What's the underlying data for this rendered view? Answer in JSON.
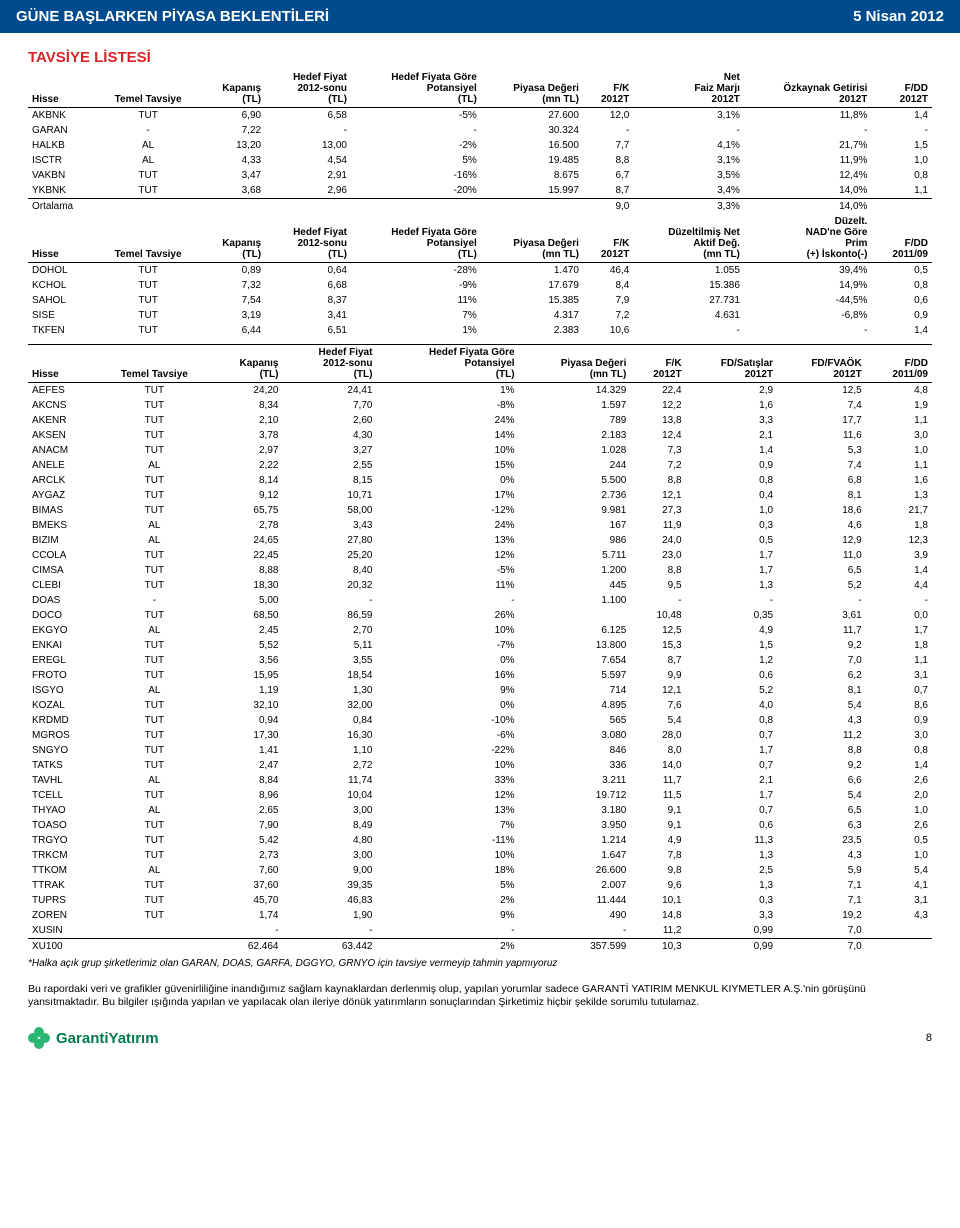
{
  "header": {
    "title": "GÜNE BAŞLARKEN PİYASA BEKLENTİLERİ",
    "date": "5 Nisan 2012"
  },
  "section_title": "TAVSİYE LİSTESİ",
  "t1_headers": [
    "Hisse",
    "Temel Tavsiye",
    "Kapanış (TL)",
    "Hedef Fiyat 2012-sonu (TL)",
    "Hedef Fiyata Göre Potansiyel (TL)",
    "Piyasa Değeri (mn TL)",
    "F/K 2012T",
    "Net Faiz Marjı 2012T",
    "Özkaynak Getirisi 2012T",
    "F/DD 2012T"
  ],
  "t1_rows": [
    [
      "AKBNK",
      "TUT",
      "6,90",
      "6,58",
      "-5%",
      "27.600",
      "12,0",
      "3,1%",
      "11,8%",
      "1,4"
    ],
    [
      "GARAN",
      "-",
      "7,22",
      "-",
      "-",
      "30.324",
      "-",
      "-",
      "-",
      "-"
    ],
    [
      "HALKB",
      "AL",
      "13,20",
      "13,00",
      "-2%",
      "16.500",
      "7,7",
      "4,1%",
      "21,7%",
      "1,5"
    ],
    [
      "ISCTR",
      "AL",
      "4,33",
      "4,54",
      "5%",
      "19.485",
      "8,8",
      "3,1%",
      "11,9%",
      "1,0"
    ],
    [
      "VAKBN",
      "TUT",
      "3,47",
      "2,91",
      "-16%",
      "8.675",
      "6,7",
      "3,5%",
      "12,4%",
      "0,8"
    ],
    [
      "YKBNK",
      "TUT",
      "3,68",
      "2,96",
      "-20%",
      "15.997",
      "8,7",
      "3,4%",
      "14,0%",
      "1,1"
    ]
  ],
  "t1_avg": [
    "Ortalama",
    "",
    "",
    "",
    "",
    "",
    "9,0",
    "3,3%",
    "14,0%",
    ""
  ],
  "t2_headers": [
    "Hisse",
    "Temel Tavsiye",
    "Kapanış (TL)",
    "Hedef Fiyat 2012-sonu (TL)",
    "Hedef Fiyata Göre Potansiyel (TL)",
    "Piyasa Değeri (mn TL)",
    "F/K 2012T",
    "Düzeltilmiş Net Aktif Değ. (mn TL)",
    "Düzelt. NAD'ne Göre Prim (+) İskonto(-)",
    "F/DD 2011/09"
  ],
  "t2_rows": [
    [
      "DOHOL",
      "TUT",
      "0,89",
      "0,64",
      "-28%",
      "1.470",
      "46,4",
      "1.055",
      "39,4%",
      "0,5"
    ],
    [
      "KCHOL",
      "TUT",
      "7,32",
      "6,68",
      "-9%",
      "17.679",
      "8,4",
      "15.386",
      "14,9%",
      "0,8"
    ],
    [
      "SAHOL",
      "TUT",
      "7,54",
      "8,37",
      "11%",
      "15.385",
      "7,9",
      "27.731",
      "-44,5%",
      "0,6"
    ],
    [
      "SISE",
      "TUT",
      "3,19",
      "3,41",
      "7%",
      "4.317",
      "7,2",
      "4.631",
      "-6,8%",
      "0,9"
    ],
    [
      "TKFEN",
      "TUT",
      "6,44",
      "6,51",
      "1%",
      "2.383",
      "10,6",
      "-",
      "-",
      "1,4"
    ]
  ],
  "t3_headers": [
    "Hisse",
    "Temel Tavsiye",
    "Kapanış (TL)",
    "Hedef Fiyat 2012-sonu (TL)",
    "Hedef Fiyata Göre Potansiyel (TL)",
    "Piyasa Değeri (mn TL)",
    "F/K 2012T",
    "FD/Satışlar 2012T",
    "FD/FVAÖK 2012T",
    "F/DD 2011/09"
  ],
  "t3_rows": [
    [
      "AEFES",
      "TUT",
      "24,20",
      "24,41",
      "1%",
      "14.329",
      "22,4",
      "2,9",
      "12,5",
      "4,8"
    ],
    [
      "AKCNS",
      "TUT",
      "8,34",
      "7,70",
      "-8%",
      "1.597",
      "12,2",
      "1,6",
      "7,4",
      "1,9"
    ],
    [
      "AKENR",
      "TUT",
      "2,10",
      "2,60",
      "24%",
      "789",
      "13,8",
      "3,3",
      "17,7",
      "1,1"
    ],
    [
      "AKSEN",
      "TUT",
      "3,78",
      "4,30",
      "14%",
      "2.183",
      "12,4",
      "2,1",
      "11,6",
      "3,0"
    ],
    [
      "ANACM",
      "TUT",
      "2,97",
      "3,27",
      "10%",
      "1.028",
      "7,3",
      "1,4",
      "5,3",
      "1,0"
    ],
    [
      "ANELE",
      "AL",
      "2,22",
      "2,55",
      "15%",
      "244",
      "7,2",
      "0,9",
      "7,4",
      "1,1"
    ],
    [
      "ARCLK",
      "TUT",
      "8,14",
      "8,15",
      "0%",
      "5.500",
      "8,8",
      "0,8",
      "6,8",
      "1,6"
    ],
    [
      "AYGAZ",
      "TUT",
      "9,12",
      "10,71",
      "17%",
      "2.736",
      "12,1",
      "0,4",
      "8,1",
      "1,3"
    ],
    [
      "BIMAS",
      "TUT",
      "65,75",
      "58,00",
      "-12%",
      "9.981",
      "27,3",
      "1,0",
      "18,6",
      "21,7"
    ],
    [
      "BMEKS",
      "AL",
      "2,78",
      "3,43",
      "24%",
      "167",
      "11,9",
      "0,3",
      "4,6",
      "1,8"
    ],
    [
      "BIZIM",
      "AL",
      "24,65",
      "27,80",
      "13%",
      "986",
      "24,0",
      "0,5",
      "12,9",
      "12,3"
    ],
    [
      "CCOLA",
      "TUT",
      "22,45",
      "25,20",
      "12%",
      "5.711",
      "23,0",
      "1,7",
      "11,0",
      "3,9"
    ],
    [
      "CIMSA",
      "TUT",
      "8,88",
      "8,40",
      "-5%",
      "1.200",
      "8,8",
      "1,7",
      "6,5",
      "1,4"
    ],
    [
      "CLEBI",
      "TUT",
      "18,30",
      "20,32",
      "11%",
      "445",
      "9,5",
      "1,3",
      "5,2",
      "4,4"
    ],
    [
      "DOAS",
      "-",
      "5,00",
      "-",
      "-",
      "1.100",
      "-",
      "-",
      "-",
      "-"
    ],
    [
      "DOCO",
      "TUT",
      "68,50",
      "86,59",
      "26%",
      "",
      "10,48",
      "0,35",
      "3,61",
      "0,0"
    ],
    [
      "EKGYO",
      "AL",
      "2,45",
      "2,70",
      "10%",
      "6.125",
      "12,5",
      "4,9",
      "11,7",
      "1,7"
    ],
    [
      "ENKAI",
      "TUT",
      "5,52",
      "5,11",
      "-7%",
      "13.800",
      "15,3",
      "1,5",
      "9,2",
      "1,8"
    ],
    [
      "EREGL",
      "TUT",
      "3,56",
      "3,55",
      "0%",
      "7.654",
      "8,7",
      "1,2",
      "7,0",
      "1,1"
    ],
    [
      "FROTO",
      "TUT",
      "15,95",
      "18,54",
      "16%",
      "5.597",
      "9,9",
      "0,6",
      "6,2",
      "3,1"
    ],
    [
      "ISGYO",
      "AL",
      "1,19",
      "1,30",
      "9%",
      "714",
      "12,1",
      "5,2",
      "8,1",
      "0,7"
    ],
    [
      "KOZAL",
      "TUT",
      "32,10",
      "32,00",
      "0%",
      "4.895",
      "7,6",
      "4,0",
      "5,4",
      "8,6"
    ],
    [
      "KRDMD",
      "TUT",
      "0,94",
      "0,84",
      "-10%",
      "565",
      "5,4",
      "0,8",
      "4,3",
      "0,9"
    ],
    [
      "MGROS",
      "TUT",
      "17,30",
      "16,30",
      "-6%",
      "3.080",
      "28,0",
      "0,7",
      "11,2",
      "3,0"
    ],
    [
      "SNGYO",
      "TUT",
      "1,41",
      "1,10",
      "-22%",
      "846",
      "8,0",
      "1,7",
      "8,8",
      "0,8"
    ],
    [
      "TATKS",
      "TUT",
      "2,47",
      "2,72",
      "10%",
      "336",
      "14,0",
      "0,7",
      "9,2",
      "1,4"
    ],
    [
      "TAVHL",
      "AL",
      "8,84",
      "11,74",
      "33%",
      "3.211",
      "11,7",
      "2,1",
      "6,6",
      "2,6"
    ],
    [
      "TCELL",
      "TUT",
      "8,96",
      "10,04",
      "12%",
      "19.712",
      "11,5",
      "1,7",
      "5,4",
      "2,0"
    ],
    [
      "THYAO",
      "AL",
      "2,65",
      "3,00",
      "13%",
      "3.180",
      "9,1",
      "0,7",
      "6,5",
      "1,0"
    ],
    [
      "TOASO",
      "TUT",
      "7,90",
      "8,49",
      "7%",
      "3.950",
      "9,1",
      "0,6",
      "6,3",
      "2,6"
    ],
    [
      "TRGYO",
      "TUT",
      "5,42",
      "4,80",
      "-11%",
      "1.214",
      "4,9",
      "11,3",
      "23,5",
      "0,5"
    ],
    [
      "TRKCM",
      "TUT",
      "2,73",
      "3,00",
      "10%",
      "1.647",
      "7,8",
      "1,3",
      "4,3",
      "1,0"
    ],
    [
      "TTKOM",
      "AL",
      "7,60",
      "9,00",
      "18%",
      "26.600",
      "9,8",
      "2,5",
      "5,9",
      "5,4"
    ],
    [
      "TTRAK",
      "TUT",
      "37,60",
      "39,35",
      "5%",
      "2.007",
      "9,6",
      "1,3",
      "7,1",
      "4,1"
    ],
    [
      "TUPRS",
      "TUT",
      "45,70",
      "46,83",
      "2%",
      "11.444",
      "10,1",
      "0,3",
      "7,1",
      "3,1"
    ],
    [
      "ZOREN",
      "TUT",
      "1,74",
      "1,90",
      "9%",
      "490",
      "14,8",
      "3,3",
      "19,2",
      "4,3"
    ],
    [
      "XUSIN",
      "",
      "-",
      "-",
      "-",
      "-",
      "11,2",
      "0,99",
      "7,0",
      ""
    ]
  ],
  "t3_summary": [
    "XU100",
    "",
    "62.464",
    "63.442",
    "2%",
    "357.599",
    "10,3",
    "0,99",
    "7,0",
    ""
  ],
  "footnote": "*Halka açık grup şirketlerimiz olan GARAN, DOAS, GARFA, DGGYO, GRNYO için tavsiye vermeyip tahmin yapmıyoruz",
  "disclaimer": "Bu rapordaki veri ve grafikler güvenirliliğine inandığımız sağlam kaynaklardan derlenmiş olup, yapılan yorumlar sadece GARANTİ YATIRIM MENKUL KIYMETLER A.Ş.'nin görüşünü yansıtmaktadır. Bu bilgiler ışığında yapılan ve yapılacak olan ileriye dönük yatırımların sonuçlarından Şirketimiz hiçbir şekilde sorumlu tutulamaz.",
  "logo_text": "GarantiYatırım",
  "page_num": "8"
}
